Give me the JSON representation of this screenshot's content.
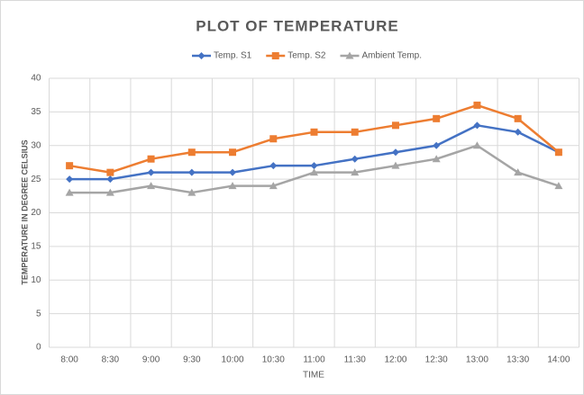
{
  "chart_data": {
    "type": "line",
    "title": "PLOT OF TEMPERATURE",
    "x_label": "TIME",
    "y_label": "TEMPERATURE IN DEGREE CELSIUS",
    "categories": [
      "8:00",
      "8:30",
      "9:00",
      "9:30",
      "10:00",
      "10:30",
      "11:00",
      "11:30",
      "12:00",
      "12:30",
      "13:00",
      "13:30",
      "14:00"
    ],
    "series": [
      {
        "name": "Temp. S1",
        "color": "#4472c4",
        "marker": "diamond",
        "values": [
          25,
          25,
          26,
          26,
          26,
          27,
          27,
          28,
          29,
          30,
          33,
          32,
          29
        ]
      },
      {
        "name": "Temp. S2",
        "color": "#ed7d31",
        "marker": "square",
        "values": [
          27,
          26,
          28,
          29,
          29,
          31,
          32,
          32,
          33,
          34,
          36,
          34,
          29
        ]
      },
      {
        "name": "Ambient Temp.",
        "color": "#a5a5a5",
        "marker": "triangle",
        "values": [
          23,
          23,
          24,
          23,
          24,
          24,
          26,
          26,
          27,
          28,
          30,
          26,
          24
        ]
      }
    ],
    "ylim": [
      0,
      40
    ],
    "yticks": [
      0,
      5,
      10,
      15,
      20,
      25,
      30,
      35,
      40
    ],
    "grid": true,
    "legend": "top"
  }
}
